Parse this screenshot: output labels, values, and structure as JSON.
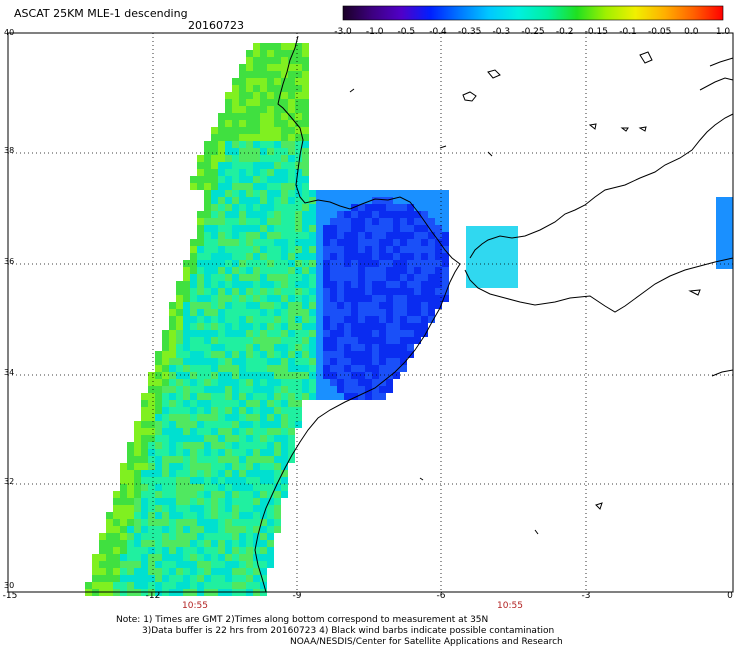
{
  "title": "ASCAT 25KM MLE-1 descending",
  "date": "20160723",
  "colorbar": {
    "labels": [
      "-3.0",
      "-1.0",
      "-0.5",
      "-0.4",
      "-0.35",
      "-0.3",
      "-0.25",
      "-0.2",
      "-0.15",
      "-0.1",
      "-0.05",
      "0.0",
      "1.0"
    ],
    "colors": [
      "#1a0026",
      "#3d0080",
      "#5000c8",
      "#0020ff",
      "#0078ff",
      "#00c8ff",
      "#00f0e0",
      "#00f0a0",
      "#20e020",
      "#a0f000",
      "#f0f000",
      "#ffb000",
      "#ff6000",
      "#ff0000"
    ]
  },
  "lat_labels": [
    "40",
    "38",
    "36",
    "34",
    "32",
    "30"
  ],
  "lon_labels": [
    "-15",
    "-12",
    "-9",
    "-6",
    "-3",
    "0"
  ],
  "time_labels": [
    "10:55",
    "10:55"
  ],
  "notes": [
    "Note: 1) Times are GMT 2)Times along bottom correspond to measurement at 35N",
    "3)Data buffer is 22 hrs from 20160723 4) Black wind barbs indicate possible contamination",
    "NOAA/NESDIS/Center for Satellite Applications and Research"
  ]
}
